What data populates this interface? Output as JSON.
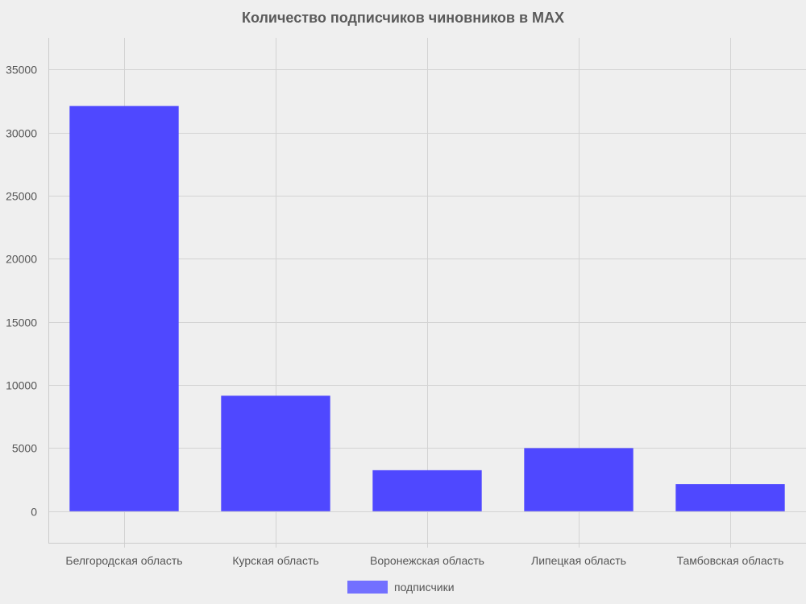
{
  "chart_data": {
    "type": "bar",
    "title": "Количество подписчиков чиновников в MAX",
    "categories": [
      "Белгородская область",
      "Курская область",
      "Воронежская область",
      "Липецкая область",
      "Тамбовская область"
    ],
    "series": [
      {
        "name": "подписчики",
        "values": [
          32100,
          9150,
          3250,
          5000,
          2150
        ]
      }
    ],
    "ylim": [
      -2500,
      37500
    ],
    "yticks": [
      0,
      5000,
      10000,
      15000,
      20000,
      25000,
      30000,
      35000
    ],
    "grid": true,
    "legend": "bottom-center",
    "colors": {
      "bar": "#4f48ff",
      "legend_swatch": "#7370ff",
      "background": "#efefef"
    }
  }
}
